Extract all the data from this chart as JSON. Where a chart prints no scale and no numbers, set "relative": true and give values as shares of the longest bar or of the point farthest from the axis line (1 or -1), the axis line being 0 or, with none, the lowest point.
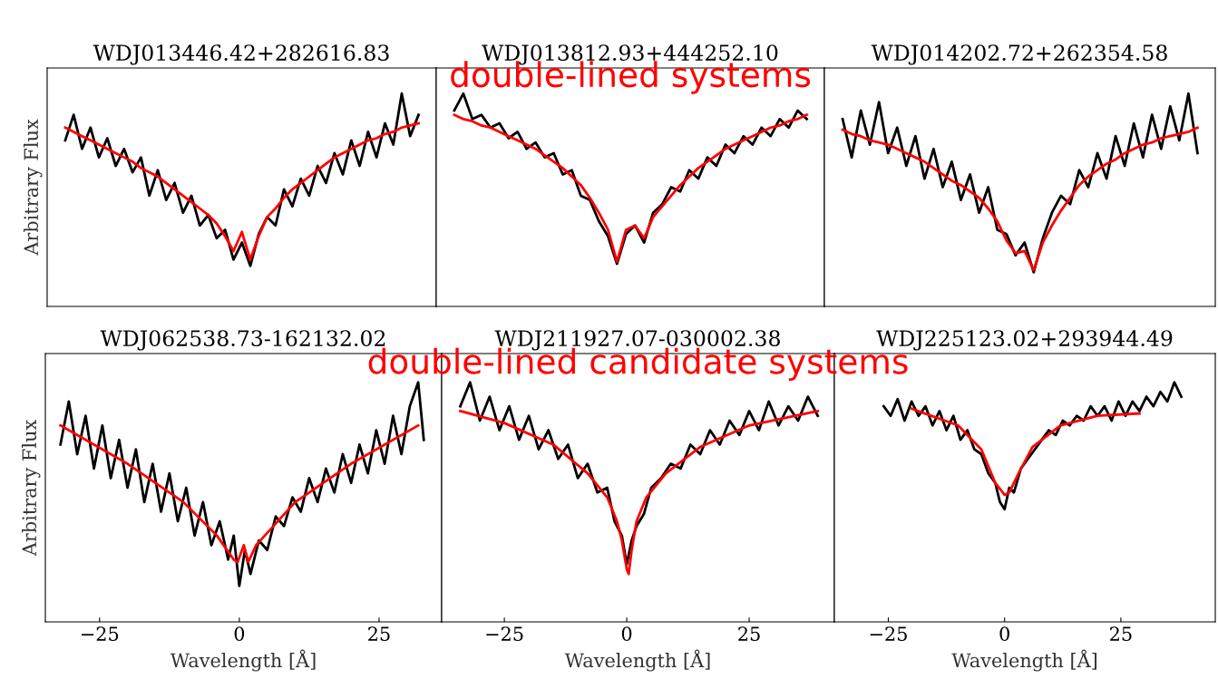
{
  "chart_data": [
    {
      "type": "line",
      "title": "WDJ013446.42+282616.83",
      "ylabel": "Arbitrary Flux",
      "relative": true,
      "tick_labels": false,
      "categories": [
        null,
        null,
        null,
        null,
        null,
        null,
        null,
        null,
        null,
        null,
        null,
        null,
        null,
        null,
        null,
        null,
        null,
        null,
        null,
        null,
        null,
        null,
        null,
        null,
        null,
        null,
        null,
        null,
        null,
        null,
        null,
        null,
        null,
        null,
        null,
        null,
        null,
        null,
        null,
        null,
        null,
        null,
        null
      ],
      "series": [
        {
          "color": "#000000",
          "values": [
            0.78,
            0.9,
            0.74,
            0.84,
            0.7,
            0.79,
            0.66,
            0.74,
            0.63,
            0.7,
            0.52,
            0.64,
            0.5,
            0.58,
            0.44,
            0.52,
            0.38,
            0.43,
            0.32,
            0.36,
            0.22,
            0.3,
            0.19,
            0.34,
            0.42,
            0.38,
            0.55,
            0.47,
            0.6,
            0.52,
            0.66,
            0.58,
            0.72,
            0.62,
            0.78,
            0.66,
            0.82,
            0.7,
            0.86,
            0.76,
            1.0,
            0.8,
            0.9
          ]
        },
        {
          "color": "#ff0000",
          "values": [
            0.84,
            0.82,
            0.8,
            0.78,
            0.76,
            0.74,
            0.72,
            0.7,
            0.68,
            0.65,
            0.63,
            0.61,
            0.58,
            0.55,
            0.52,
            0.49,
            0.46,
            0.43,
            0.39,
            0.33,
            0.26,
            0.35,
            0.22,
            0.33,
            0.42,
            0.46,
            0.51,
            0.55,
            0.58,
            0.61,
            0.64,
            0.67,
            0.7,
            0.72,
            0.74,
            0.76,
            0.78,
            0.79,
            0.81,
            0.82,
            0.84,
            0.85,
            0.86
          ]
        }
      ]
    },
    {
      "type": "line",
      "title": "WDJ013812.93+444252.10",
      "relative": true,
      "tick_labels": false,
      "annotations": [
        "double-lined systems"
      ],
      "categories": [
        null,
        null,
        null,
        null,
        null,
        null,
        null,
        null,
        null,
        null,
        null,
        null,
        null,
        null,
        null,
        null,
        null,
        null,
        null,
        null,
        null,
        null,
        null,
        null,
        null,
        null,
        null,
        null,
        null,
        null,
        null,
        null,
        null,
        null,
        null,
        null,
        null,
        null,
        null,
        null
      ],
      "series": [
        {
          "color": "#000000",
          "values": [
            0.92,
            1.0,
            0.88,
            0.9,
            0.84,
            0.86,
            0.79,
            0.82,
            0.74,
            0.77,
            0.7,
            0.72,
            0.62,
            0.64,
            0.52,
            0.5,
            0.4,
            0.33,
            0.2,
            0.34,
            0.38,
            0.3,
            0.44,
            0.48,
            0.56,
            0.54,
            0.64,
            0.6,
            0.7,
            0.66,
            0.76,
            0.72,
            0.8,
            0.76,
            0.84,
            0.8,
            0.88,
            0.84,
            0.92,
            0.88
          ]
        },
        {
          "color": "#ff0000",
          "values": [
            0.9,
            0.88,
            0.87,
            0.85,
            0.84,
            0.82,
            0.8,
            0.78,
            0.76,
            0.74,
            0.71,
            0.68,
            0.65,
            0.61,
            0.57,
            0.51,
            0.44,
            0.36,
            0.21,
            0.36,
            0.38,
            0.32,
            0.42,
            0.47,
            0.52,
            0.57,
            0.61,
            0.65,
            0.68,
            0.71,
            0.74,
            0.76,
            0.78,
            0.8,
            0.82,
            0.84,
            0.85,
            0.87,
            0.88,
            0.9
          ]
        }
      ]
    },
    {
      "type": "line",
      "title": "WDJ014202.72+262354.58",
      "relative": true,
      "tick_labels": false,
      "categories": [
        null,
        null,
        null,
        null,
        null,
        null,
        null,
        null,
        null,
        null,
        null,
        null,
        null,
        null,
        null,
        null,
        null,
        null,
        null,
        null,
        null,
        null,
        null,
        null,
        null,
        null,
        null,
        null,
        null,
        null,
        null,
        null,
        null,
        null,
        null,
        null,
        null,
        null,
        null,
        null
      ],
      "series": [
        {
          "color": "#000000",
          "values": [
            0.88,
            0.7,
            0.92,
            0.76,
            0.96,
            0.72,
            0.84,
            0.66,
            0.8,
            0.6,
            0.74,
            0.56,
            0.68,
            0.5,
            0.62,
            0.44,
            0.56,
            0.36,
            0.34,
            0.24,
            0.3,
            0.16,
            0.32,
            0.44,
            0.52,
            0.48,
            0.64,
            0.56,
            0.72,
            0.6,
            0.8,
            0.66,
            0.86,
            0.7,
            0.9,
            0.74,
            0.94,
            0.78,
            1.0,
            0.72
          ]
        },
        {
          "color": "#ff0000",
          "values": [
            0.83,
            0.81,
            0.8,
            0.78,
            0.77,
            0.76,
            0.74,
            0.72,
            0.7,
            0.68,
            0.65,
            0.62,
            0.59,
            0.57,
            0.54,
            0.51,
            0.46,
            0.4,
            0.31,
            0.25,
            0.26,
            0.17,
            0.3,
            0.38,
            0.45,
            0.51,
            0.57,
            0.61,
            0.64,
            0.67,
            0.69,
            0.72,
            0.74,
            0.76,
            0.77,
            0.79,
            0.8,
            0.81,
            0.82,
            0.84
          ]
        }
      ]
    },
    {
      "type": "line",
      "title": "WDJ062538.73-162132.02",
      "xlabel": "Wavelength [Å]",
      "ylabel": "Arbitrary Flux",
      "relative": true,
      "xlim": [
        -34.7,
        36.2
      ],
      "xticks": [
        -25,
        0,
        25
      ],
      "tick_labels": "x",
      "series": [
        {
          "color": "#000000",
          "x": [
            -32,
            -30.5,
            -29,
            -27.5,
            -26,
            -24.5,
            -23,
            -21.5,
            -20,
            -18.5,
            -17,
            -15.5,
            -14,
            -12.5,
            -11,
            -9.5,
            -8,
            -6.5,
            -5,
            -3.5,
            -2,
            -1,
            0,
            1,
            2,
            3.5,
            5,
            6.5,
            8,
            9.5,
            11,
            12.5,
            14,
            15.5,
            17,
            18.5,
            20,
            21.5,
            23,
            24.5,
            26,
            27.5,
            29,
            30.5,
            32,
            33
          ],
          "values": [
            0.74,
            0.92,
            0.7,
            0.86,
            0.64,
            0.82,
            0.6,
            0.76,
            0.56,
            0.72,
            0.5,
            0.66,
            0.46,
            0.62,
            0.42,
            0.56,
            0.36,
            0.5,
            0.32,
            0.42,
            0.26,
            0.36,
            0.15,
            0.3,
            0.2,
            0.34,
            0.3,
            0.44,
            0.4,
            0.52,
            0.46,
            0.6,
            0.5,
            0.64,
            0.54,
            0.7,
            0.58,
            0.74,
            0.62,
            0.8,
            0.66,
            0.86,
            0.7,
            0.9,
            1.0,
            0.76
          ]
        },
        {
          "color": "#ff0000",
          "x": [
            -32,
            -20,
            -10,
            -4,
            -1,
            -0.3,
            0.8,
            1.6,
            3,
            10,
            20,
            32
          ],
          "values": [
            0.82,
            0.66,
            0.5,
            0.36,
            0.26,
            0.25,
            0.32,
            0.25,
            0.32,
            0.5,
            0.66,
            0.82
          ]
        }
      ]
    },
    {
      "type": "line",
      "title": "WDJ211927.07-030002.38",
      "xlabel": "Wavelength [Å]",
      "relative": true,
      "xlim": [
        -37.8,
        42.4
      ],
      "xticks": [
        -25,
        0,
        25
      ],
      "tick_labels": "x",
      "annotations": [
        "double-lined candidate systems"
      ],
      "series": [
        {
          "color": "#000000",
          "x": [
            -34,
            -32,
            -30,
            -28,
            -26,
            -24,
            -22,
            -20,
            -18,
            -16,
            -14,
            -12,
            -10,
            -8,
            -6,
            -4,
            -2.5,
            -1,
            0,
            1,
            2,
            3.5,
            5,
            7,
            9,
            11,
            13,
            15,
            17,
            19,
            21,
            23,
            25,
            27,
            29,
            31,
            33,
            35,
            37,
            39
          ],
          "values": [
            0.9,
            1.0,
            0.84,
            0.94,
            0.8,
            0.9,
            0.76,
            0.86,
            0.72,
            0.8,
            0.68,
            0.74,
            0.6,
            0.66,
            0.54,
            0.56,
            0.42,
            0.36,
            0.24,
            0.34,
            0.4,
            0.45,
            0.56,
            0.6,
            0.66,
            0.64,
            0.74,
            0.7,
            0.8,
            0.74,
            0.84,
            0.78,
            0.88,
            0.8,
            0.92,
            0.82,
            0.9,
            0.84,
            0.94,
            0.86
          ]
        },
        {
          "color": "#ff0000",
          "x": [
            -34,
            -25,
            -15,
            -8,
            -4,
            -2,
            -1,
            0,
            0.4,
            1,
            2,
            4,
            8,
            15,
            25,
            39
          ],
          "values": [
            0.88,
            0.83,
            0.74,
            0.62,
            0.52,
            0.42,
            0.34,
            0.22,
            0.2,
            0.3,
            0.42,
            0.52,
            0.62,
            0.73,
            0.82,
            0.88
          ]
        }
      ]
    },
    {
      "type": "line",
      "title": "WDJ225123.02+293944.49",
      "xlabel": "Wavelength [Å]",
      "relative": true,
      "xlim": [
        -36.6,
        45.3
      ],
      "xticks": [
        -25,
        0,
        25
      ],
      "tick_labels": "x",
      "series": [
        {
          "color": "#000000",
          "x": [
            -26,
            -24.5,
            -23,
            -21.5,
            -20,
            -18.5,
            -17,
            -15.5,
            -14,
            -12.5,
            -11,
            -9.5,
            -8,
            -6.5,
            -5,
            -3.5,
            -2,
            -1,
            0,
            1,
            2,
            3.5,
            5,
            6.5,
            8,
            9.5,
            11,
            12.5,
            14,
            15.5,
            17,
            18.5,
            20,
            21.5,
            23,
            24.5,
            26,
            27.5,
            29,
            30.5,
            32,
            33.5,
            35,
            36.5,
            38
          ],
          "values": [
            0.9,
            0.86,
            0.93,
            0.84,
            0.92,
            0.86,
            0.9,
            0.82,
            0.88,
            0.8,
            0.86,
            0.76,
            0.8,
            0.72,
            0.7,
            0.62,
            0.58,
            0.5,
            0.47,
            0.56,
            0.54,
            0.64,
            0.68,
            0.72,
            0.76,
            0.8,
            0.78,
            0.84,
            0.82,
            0.86,
            0.84,
            0.9,
            0.86,
            0.9,
            0.84,
            0.92,
            0.86,
            0.92,
            0.88,
            0.94,
            0.9,
            0.96,
            0.92,
            1.0,
            0.94
          ]
        },
        {
          "color": "#ff0000",
          "x": [
            -20,
            -10,
            -5,
            -2,
            0,
            1,
            3,
            6,
            12,
            20,
            29
          ],
          "values": [
            0.89,
            0.82,
            0.72,
            0.58,
            0.53,
            0.54,
            0.62,
            0.73,
            0.82,
            0.86,
            0.87
          ]
        }
      ]
    }
  ]
}
